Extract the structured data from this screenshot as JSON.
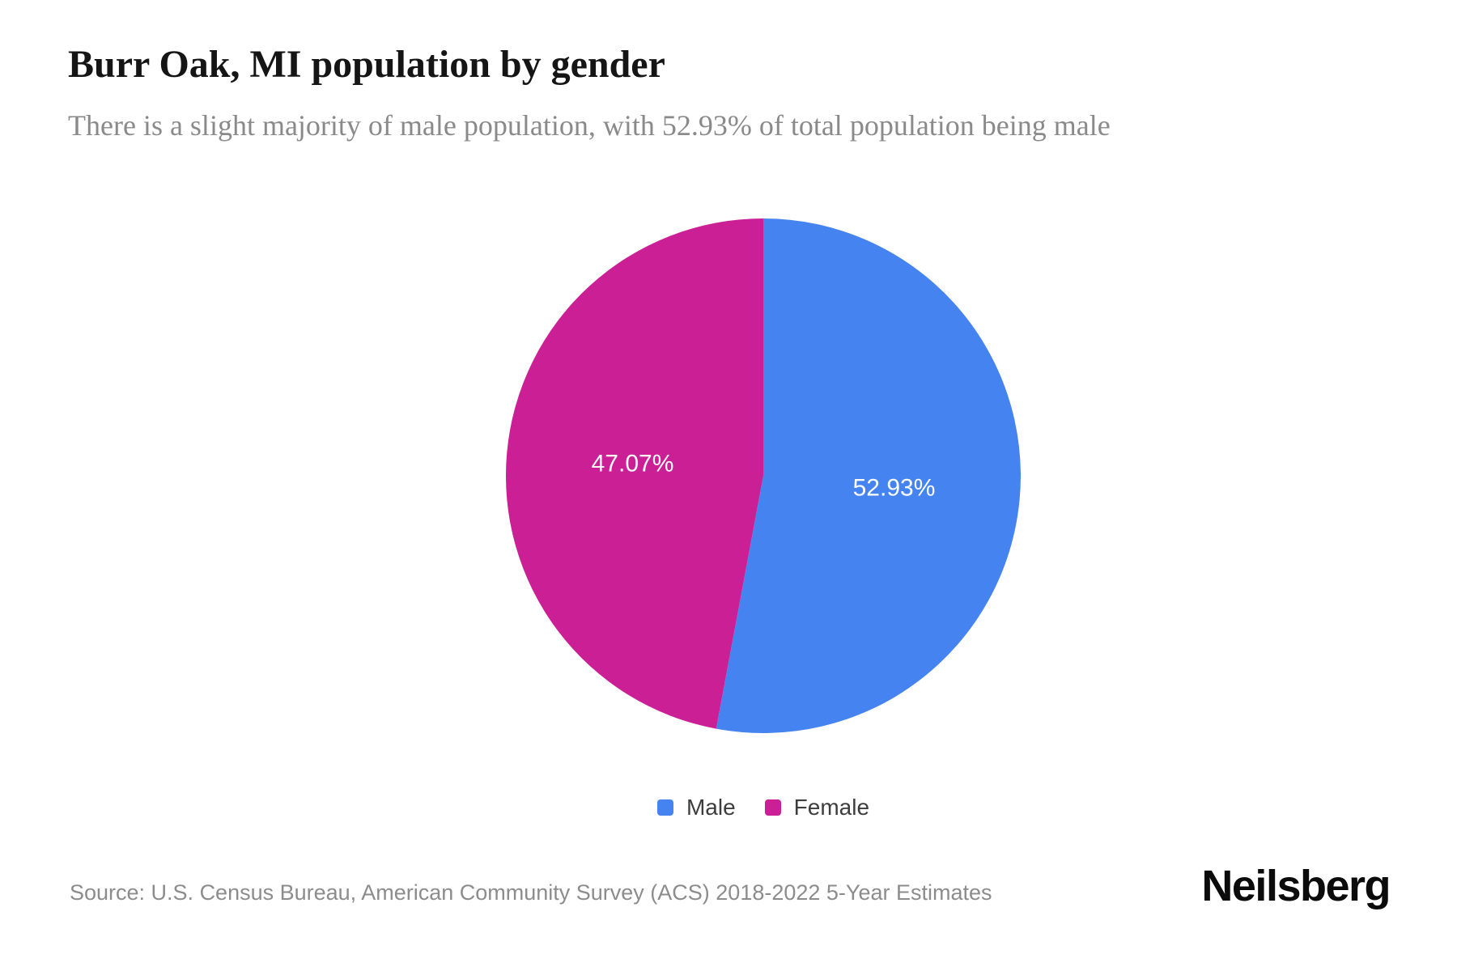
{
  "header": {
    "title": "Burr Oak, MI population by gender",
    "subtitle": "There is a slight majority of male population, with 52.93% of total population being male"
  },
  "chart_data": {
    "type": "pie",
    "title": "Burr Oak, MI population by gender",
    "subtitle": "There is a slight majority of male population, with 52.93% of total population being male",
    "categories": [
      "Male",
      "Female"
    ],
    "values": [
      52.93,
      47.07
    ],
    "unit": "percent of total population",
    "slices": [
      {
        "label": "Male",
        "value": 52.93,
        "display": "52.93%",
        "color": "#4584F0"
      },
      {
        "label": "Female",
        "value": 47.07,
        "display": "47.07%",
        "color": "#CB1F96"
      }
    ],
    "start_angle": "top",
    "direction": "clockwise",
    "slice_label_color": "#ffffff",
    "legend_position": "bottom",
    "grid": false
  },
  "footer": {
    "source": "Source: U.S. Census Bureau, American Community Survey (ACS) 2018-2022 5-Year Estimates",
    "brand": "Neilsberg"
  }
}
